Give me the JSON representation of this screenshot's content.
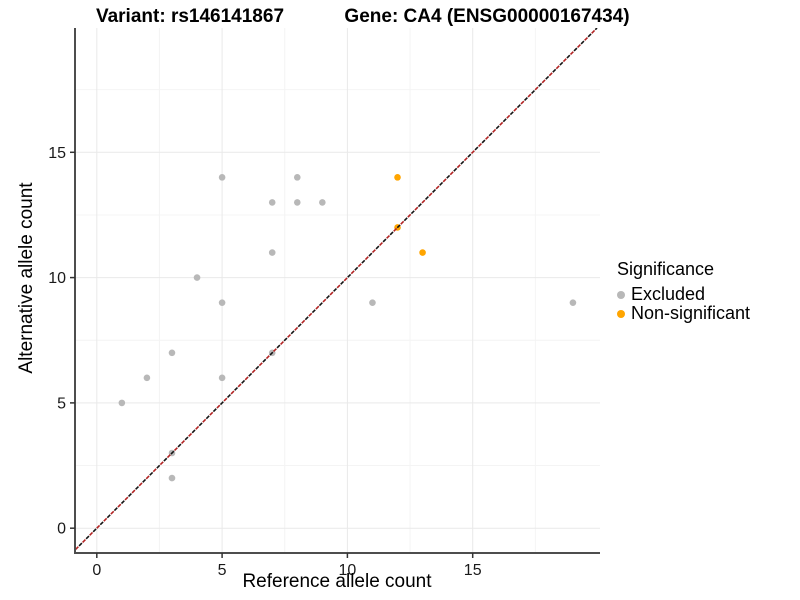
{
  "titles": {
    "variant": "Variant: rs146141867",
    "gene": "Gene: CA4 (ENSG00000167434)"
  },
  "chart_data": {
    "type": "scatter",
    "title": "Variant: rs146141867 / Gene: CA4 (ENSG00000167434)",
    "xlabel": "Reference allele count",
    "ylabel": "Alternative allele count",
    "xlim": [
      -0.87,
      20.08
    ],
    "ylim": [
      -0.99,
      19.96
    ],
    "x_ticks": [
      0,
      5,
      10,
      15
    ],
    "y_ticks": [
      0,
      5,
      10,
      15
    ],
    "minor_gridlines": [
      2.5,
      7.5,
      12.5,
      17.5
    ],
    "grid": true,
    "legend_position": "right",
    "identity_line": {
      "type": "dashed",
      "slope": 1,
      "intercept": 0,
      "colors": [
        "#141414",
        "#B22222"
      ]
    },
    "series": [
      {
        "name": "Excluded",
        "color": "#b8b8b8",
        "points": [
          [
            1,
            5
          ],
          [
            2,
            6
          ],
          [
            3,
            2
          ],
          [
            3,
            3
          ],
          [
            3,
            7
          ],
          [
            4,
            10
          ],
          [
            5,
            6
          ],
          [
            5,
            9
          ],
          [
            5,
            14
          ],
          [
            7,
            7
          ],
          [
            7,
            11
          ],
          [
            7,
            13
          ],
          [
            8,
            13
          ],
          [
            8,
            14
          ],
          [
            9,
            13
          ],
          [
            11,
            9
          ],
          [
            19,
            9
          ]
        ]
      },
      {
        "name": "Non-significant",
        "color": "#FFA500",
        "points": [
          [
            12,
            12
          ],
          [
            12,
            14
          ],
          [
            13,
            11
          ]
        ]
      }
    ]
  },
  "legend": {
    "title": "Significance",
    "items": [
      {
        "label": "Excluded",
        "color": "#b8b8b8"
      },
      {
        "label": "Non-significant",
        "color": "#FFA500"
      }
    ]
  },
  "style": {
    "grid_major": "#e9e9e9",
    "grid_minor": "#f4f4f4",
    "axis_line": "#4d4d4d",
    "tick_mark": "#333333",
    "tick_label": "#1a1a1a"
  }
}
